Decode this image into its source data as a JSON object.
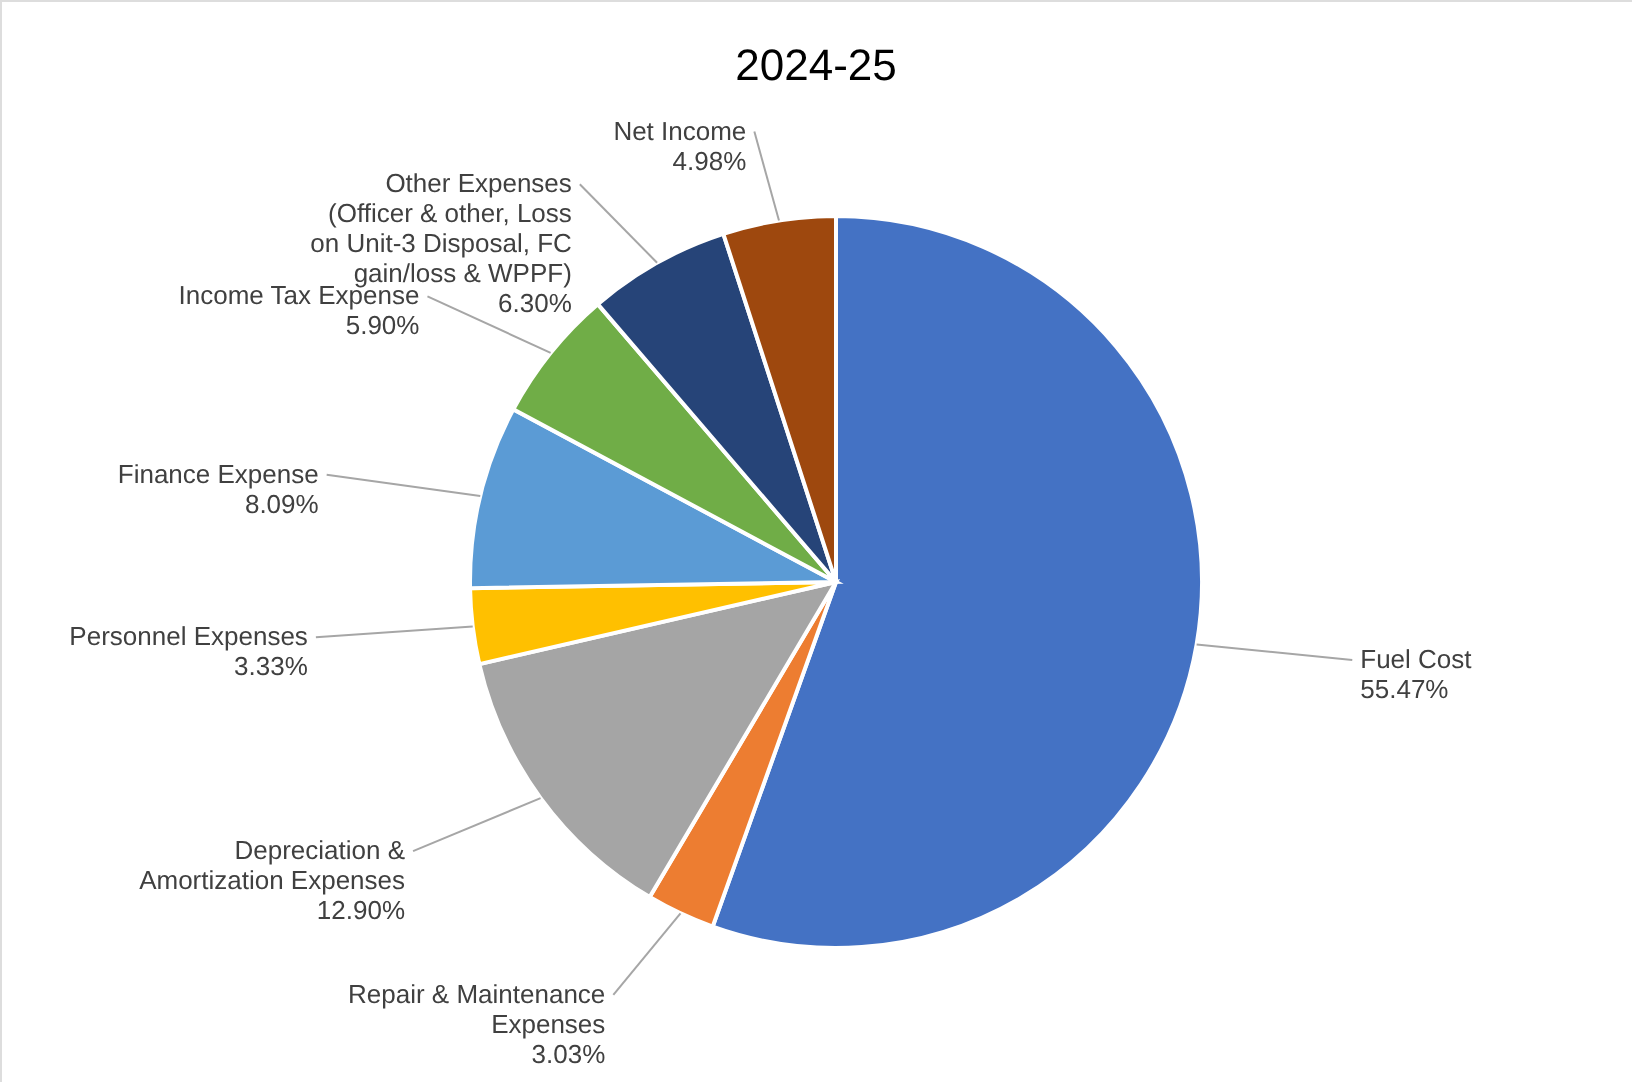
{
  "chart_data": {
    "type": "pie",
    "title": "2024-25",
    "categories": [
      "Fuel Cost",
      "Repair & Maintenance Expenses",
      "Depreciation & Amortization Expenses",
      "Personnel Expenses",
      "Finance Expense",
      "Income Tax Expense",
      "Other Expenses (Officer & other, Loss on Unit-3 Disposal, FC gain/loss & WPPF)",
      "Net Income"
    ],
    "values": [
      55.47,
      3.03,
      12.9,
      3.33,
      8.09,
      5.9,
      6.3,
      4.98
    ],
    "value_labels": [
      "55.47%",
      "3.03%",
      "12.90%",
      "3.33%",
      "8.09%",
      "5.90%",
      "6.30%",
      "4.98%"
    ],
    "colors": [
      "#4472c4",
      "#ed7d31",
      "#a5a5a5",
      "#ffc000",
      "#5b9bd5",
      "#70ad47",
      "#264478",
      "#9e480e"
    ]
  }
}
